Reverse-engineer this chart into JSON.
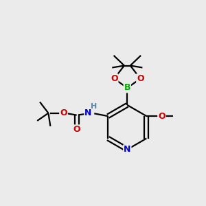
{
  "bg_color": "#ebebeb",
  "atom_colors": {
    "C": "#000000",
    "N": "#0000cc",
    "O": "#cc0000",
    "B": "#00aa00",
    "H": "#5588aa"
  },
  "line_color": "#000000",
  "line_width": 1.6
}
